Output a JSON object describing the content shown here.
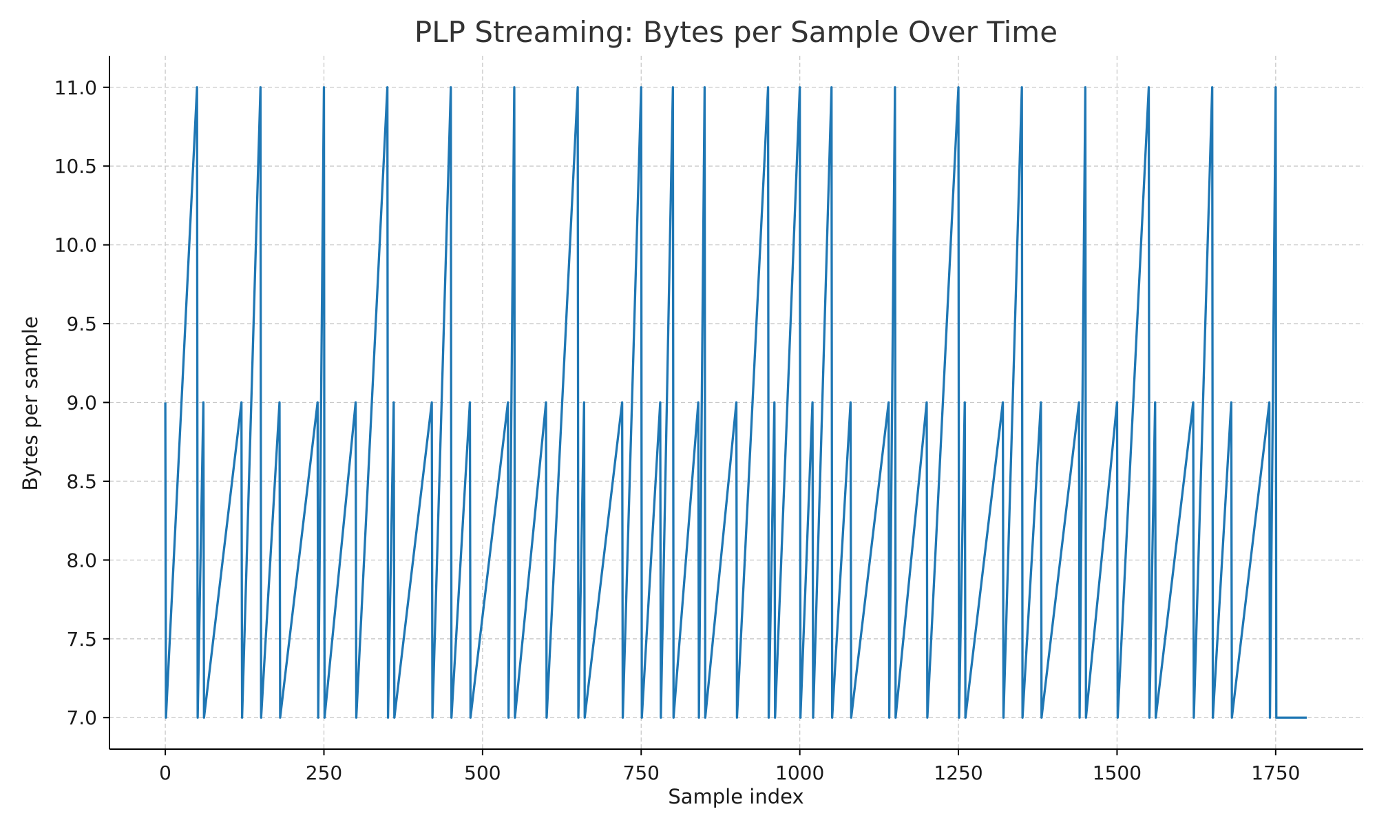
{
  "chart_data": {
    "type": "line",
    "title": "PLP Streaming: Bytes per Sample Over Time",
    "xlabel": "Sample index",
    "ylabel": "Bytes per sample",
    "xlim": [
      -88,
      1888
    ],
    "ylim": [
      6.8,
      11.2
    ],
    "x_ticks": [
      0,
      250,
      500,
      750,
      1000,
      1250,
      1500,
      1750
    ],
    "y_ticks": [
      7.0,
      7.5,
      8.0,
      8.5,
      9.0,
      9.5,
      10.0,
      10.5,
      11.0
    ],
    "x_tick_labels": [
      "0",
      "250",
      "500",
      "750",
      "1000",
      "1250",
      "1500",
      "1750"
    ],
    "y_tick_labels": [
      "7.0",
      "7.5",
      "8.0",
      "8.5",
      "9.0",
      "9.5",
      "10.0",
      "10.5",
      "11.0"
    ],
    "grid": true,
    "color": "#1f77b4",
    "series": [
      {
        "baseline": 7,
        "x_range": [
          0,
          1799
        ],
        "spikes": [
          [
            0,
            9
          ],
          [
            50,
            11
          ],
          [
            60,
            9
          ],
          [
            120,
            9
          ],
          [
            150,
            11
          ],
          [
            180,
            9
          ],
          [
            240,
            9
          ],
          [
            250,
            11
          ],
          [
            300,
            9
          ],
          [
            350,
            11
          ],
          [
            360,
            9
          ],
          [
            420,
            9
          ],
          [
            450,
            11
          ],
          [
            480,
            9
          ],
          [
            540,
            9
          ],
          [
            550,
            11
          ],
          [
            600,
            9
          ],
          [
            650,
            11
          ],
          [
            660,
            9
          ],
          [
            720,
            9
          ],
          [
            750,
            11
          ],
          [
            780,
            9
          ],
          [
            800,
            11
          ],
          [
            840,
            9
          ],
          [
            850,
            11
          ],
          [
            900,
            9
          ],
          [
            950,
            11
          ],
          [
            960,
            9
          ],
          [
            1000,
            11
          ],
          [
            1020,
            9
          ],
          [
            1050,
            11
          ],
          [
            1080,
            9
          ],
          [
            1140,
            9
          ],
          [
            1150,
            11
          ],
          [
            1200,
            9
          ],
          [
            1250,
            11
          ],
          [
            1260,
            9
          ],
          [
            1320,
            9
          ],
          [
            1350,
            11
          ],
          [
            1380,
            9
          ],
          [
            1440,
            9
          ],
          [
            1450,
            11
          ],
          [
            1500,
            9
          ],
          [
            1550,
            11
          ],
          [
            1560,
            9
          ],
          [
            1620,
            9
          ],
          [
            1650,
            11
          ],
          [
            1680,
            9
          ],
          [
            1740,
            9
          ],
          [
            1750,
            11
          ]
        ]
      }
    ]
  }
}
